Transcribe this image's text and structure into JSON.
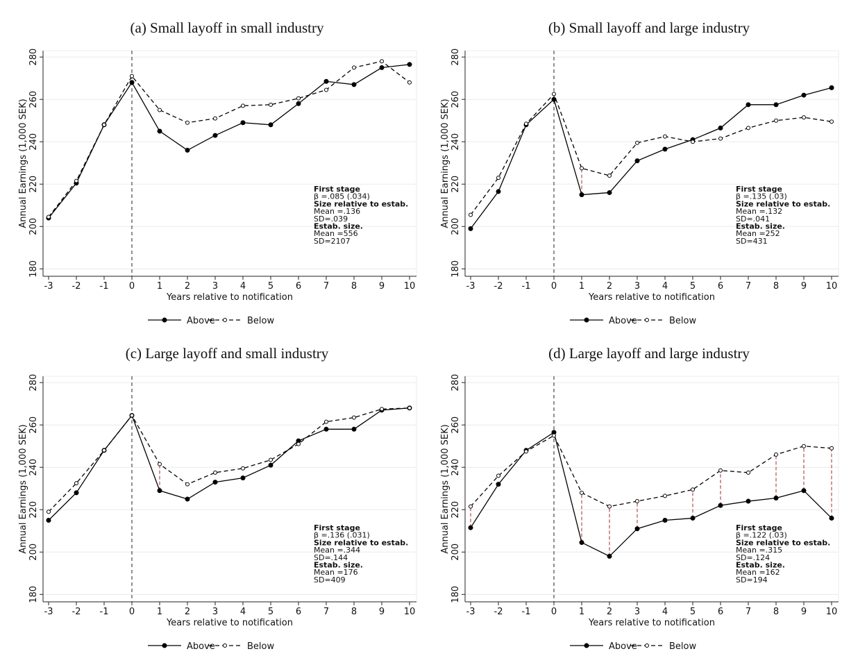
{
  "chart_data": [
    {
      "type": "line",
      "title": "(a) Small layoff in small industry",
      "x_label": "Years relative to notification",
      "y_label": "Annual Earnings (1,000 SEK)",
      "x": [
        -3,
        -2,
        -1,
        0,
        1,
        2,
        3,
        4,
        5,
        6,
        7,
        8,
        9,
        10
      ],
      "xlim": [
        -3.2,
        10.25
      ],
      "xticks": [
        -3,
        -2,
        -1,
        0,
        1,
        2,
        3,
        4,
        5,
        6,
        7,
        8,
        9,
        10
      ],
      "ylim": [
        176.5,
        283
      ],
      "yticks": [
        180,
        200,
        220,
        240,
        260,
        280
      ],
      "grid": true,
      "vline": 0,
      "series": [
        {
          "name": "Above",
          "color": "#000000",
          "dash": false,
          "marker": "filled",
          "values": [
            204,
            220.5,
            248,
            268,
            245,
            236,
            243,
            249,
            248,
            258,
            268.5,
            267,
            275,
            276.5
          ]
        },
        {
          "name": "Below",
          "color": "#000000",
          "dash": true,
          "marker": "open",
          "values": [
            204.5,
            221.5,
            248,
            271,
            255,
            249,
            251,
            257,
            257.5,
            260.5,
            264.5,
            275,
            278,
            268
          ]
        }
      ],
      "significant_x": [],
      "annotation": [
        {
          "text": "First stage",
          "bold": true
        },
        {
          "text": "β =.085 (.034)",
          "bold": false
        },
        {
          "text": "Size relative to estab.",
          "bold": true
        },
        {
          "text": "Mean =.136",
          "bold": false
        },
        {
          "text": "SD=.039",
          "bold": false
        },
        {
          "text": "Estab. size.",
          "bold": true
        },
        {
          "text": "Mean =556",
          "bold": false
        },
        {
          "text": "SD=2107",
          "bold": false
        }
      ]
    },
    {
      "type": "line",
      "title": "(b) Small layoff and large industry",
      "x_label": "Years relative to notification",
      "y_label": "Annual Earnings (1,000 SEK)",
      "x": [
        -3,
        -2,
        -1,
        0,
        1,
        2,
        3,
        4,
        5,
        6,
        7,
        8,
        9,
        10
      ],
      "xlim": [
        -3.2,
        10.25
      ],
      "xticks": [
        -3,
        -2,
        -1,
        0,
        1,
        2,
        3,
        4,
        5,
        6,
        7,
        8,
        9,
        10
      ],
      "ylim": [
        176.5,
        283
      ],
      "yticks": [
        180,
        200,
        220,
        240,
        260,
        280
      ],
      "grid": true,
      "vline": 0,
      "series": [
        {
          "name": "Above",
          "color": "#000000",
          "dash": false,
          "marker": "filled",
          "values": [
            199,
            216.5,
            248,
            260,
            215,
            216,
            231,
            236.5,
            241,
            246.5,
            257.5,
            257.5,
            262,
            265.5
          ]
        },
        {
          "name": "Below",
          "color": "#000000",
          "dash": true,
          "marker": "open",
          "values": [
            205.5,
            223,
            248.5,
            262.5,
            227.5,
            224,
            239.5,
            242.5,
            240,
            241.5,
            246.5,
            250,
            251.5,
            249.5
          ]
        }
      ],
      "significant_x": [
        1
      ],
      "annotation": [
        {
          "text": "First stage",
          "bold": true
        },
        {
          "text": "β =.135 (.03)",
          "bold": false
        },
        {
          "text": "Size relative to estab.",
          "bold": true
        },
        {
          "text": "Mean =.132",
          "bold": false
        },
        {
          "text": "SD=.041",
          "bold": false
        },
        {
          "text": "Estab. size.",
          "bold": true
        },
        {
          "text": "Mean =252",
          "bold": false
        },
        {
          "text": "SD=431",
          "bold": false
        }
      ]
    },
    {
      "type": "line",
      "title": "(c) Large layoff and small industry",
      "x_label": "Years relative to notification",
      "y_label": "Annual Earnings (1,000 SEK)",
      "x": [
        -3,
        -2,
        -1,
        0,
        1,
        2,
        3,
        4,
        5,
        6,
        7,
        8,
        9,
        10
      ],
      "xlim": [
        -3.2,
        10.25
      ],
      "xticks": [
        -3,
        -2,
        -1,
        0,
        1,
        2,
        3,
        4,
        5,
        6,
        7,
        8,
        9,
        10
      ],
      "ylim": [
        176.5,
        283
      ],
      "yticks": [
        180,
        200,
        220,
        240,
        260,
        280
      ],
      "grid": true,
      "vline": 0,
      "series": [
        {
          "name": "Above",
          "color": "#000000",
          "dash": false,
          "marker": "filled",
          "values": [
            215,
            228,
            248,
            264.5,
            229,
            225,
            233,
            235,
            241,
            252.5,
            258,
            258,
            267,
            268
          ]
        },
        {
          "name": "Below",
          "color": "#000000",
          "dash": true,
          "marker": "open",
          "values": [
            219,
            232.5,
            248,
            264.5,
            241.5,
            232,
            237.5,
            239.5,
            243.5,
            251,
            261.5,
            263.5,
            267.5,
            268
          ]
        }
      ],
      "significant_x": [
        1
      ],
      "annotation": [
        {
          "text": "First stage",
          "bold": true
        },
        {
          "text": "β =.136 (.031)",
          "bold": false
        },
        {
          "text": "Size relative to estab.",
          "bold": true
        },
        {
          "text": "Mean =.344",
          "bold": false
        },
        {
          "text": "SD=.144",
          "bold": false
        },
        {
          "text": "Estab. size.",
          "bold": true
        },
        {
          "text": "Mean =176",
          "bold": false
        },
        {
          "text": "SD=409",
          "bold": false
        }
      ]
    },
    {
      "type": "line",
      "title": "(d) Large layoff and large industry",
      "x_label": "Years relative to notification",
      "y_label": "Annual Earnings (1,000 SEK)",
      "x": [
        -3,
        -2,
        -1,
        0,
        1,
        2,
        3,
        4,
        5,
        6,
        7,
        8,
        9,
        10
      ],
      "xlim": [
        -3.2,
        10.25
      ],
      "xticks": [
        -3,
        -2,
        -1,
        0,
        1,
        2,
        3,
        4,
        5,
        6,
        7,
        8,
        9,
        10
      ],
      "ylim": [
        176.5,
        283
      ],
      "yticks": [
        180,
        200,
        220,
        240,
        260,
        280
      ],
      "grid": true,
      "vline": 0,
      "series": [
        {
          "name": "Above",
          "color": "#000000",
          "dash": false,
          "marker": "filled",
          "values": [
            211.5,
            232,
            248,
            256.5,
            204.5,
            198,
            211,
            215,
            216,
            222,
            224,
            225.5,
            229,
            216
          ]
        },
        {
          "name": "Below",
          "color": "#000000",
          "dash": true,
          "marker": "open",
          "values": [
            221.5,
            236,
            247.5,
            255,
            228,
            221.5,
            224,
            226.5,
            229.5,
            238.5,
            237.5,
            246,
            250,
            249
          ]
        }
      ],
      "significant_x": [
        -3,
        1,
        2,
        3,
        5,
        6,
        8,
        9,
        10
      ],
      "annotation": [
        {
          "text": "First stage",
          "bold": true
        },
        {
          "text": "β =.122 (.03)",
          "bold": false
        },
        {
          "text": "Size relative to estab.",
          "bold": true
        },
        {
          "text": "Mean =.315",
          "bold": false
        },
        {
          "text": "SD=.124",
          "bold": false
        },
        {
          "text": "Estab. size.",
          "bold": true
        },
        {
          "text": "Mean =162",
          "bold": false
        },
        {
          "text": "SD=194",
          "bold": false
        }
      ]
    }
  ]
}
